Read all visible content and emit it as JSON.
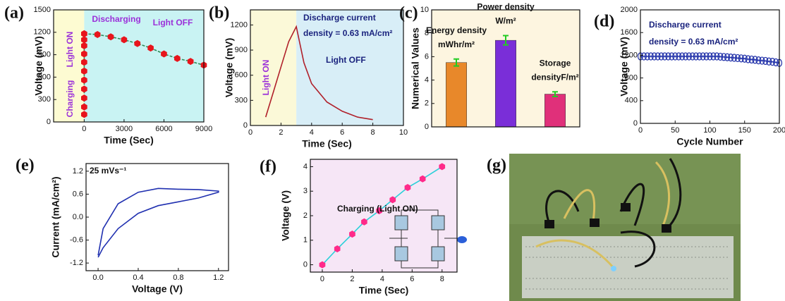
{
  "chart_data": [
    {
      "type": "scatter",
      "label": "(a)",
      "xlabel": "Time (Sec)",
      "ylabel": "Voltage (mV)",
      "xlim": [
        -2300,
        9000
      ],
      "ylim": [
        0,
        1500
      ],
      "xticks": [
        0,
        3000,
        6000,
        9000
      ],
      "yticks": [
        0,
        300,
        600,
        900,
        1200,
        1500
      ],
      "annotations": [
        "Light ON",
        "Charging",
        "Discharging",
        "Light OFF"
      ],
      "series": [
        {
          "color": "#e8141c",
          "line_color": "#2e8b57",
          "marker": "hexagon",
          "dashed": true,
          "x": [
            0,
            0,
            0,
            0,
            0,
            0,
            0,
            0,
            0,
            0,
            0
          ],
          "values": [
            100,
            200,
            320,
            440,
            560,
            680,
            800,
            910,
            1020,
            1100,
            1180
          ]
        },
        {
          "color": "#e8141c",
          "line_color": "#2e8b57",
          "marker": "hexagon",
          "dashed": true,
          "x": [
            0,
            1000,
            2000,
            3000,
            4000,
            5000,
            6000,
            7000,
            8000,
            9000
          ],
          "values": [
            1180,
            1170,
            1140,
            1100,
            1050,
            990,
            910,
            850,
            810,
            760
          ]
        }
      ]
    },
    {
      "type": "line",
      "label": "(b)",
      "xlabel": "Time (Sec)",
      "ylabel": "Voltage (mV)",
      "xlim": [
        0,
        10
      ],
      "ylim": [
        0,
        1380
      ],
      "xticks": [
        0,
        2,
        4,
        6,
        8,
        10
      ],
      "yticks": [
        0,
        300,
        600,
        900,
        1200
      ],
      "annotations": [
        "Light ON",
        "Discharge current",
        "density = 0.63 mA/cm²",
        "Light OFF"
      ],
      "series": [
        {
          "color": "#b0202a",
          "x": [
            1,
            1.5,
            2,
            2.5,
            3,
            3.5,
            4,
            5,
            6,
            7,
            8
          ],
          "values": [
            100,
            400,
            700,
            1000,
            1180,
            750,
            500,
            280,
            170,
            100,
            70
          ]
        }
      ]
    },
    {
      "type": "bar",
      "label": "(c)",
      "ylabel": "Numerical Values",
      "ylim": [
        0,
        10
      ],
      "yticks": [
        0,
        2,
        4,
        6,
        8,
        10
      ],
      "categories": [
        "Energy density",
        "Power density",
        "Storage"
      ],
      "units": [
        "mWhr/m²",
        "W/m²",
        "densityF/m²"
      ],
      "values": [
        5.5,
        7.4,
        2.8
      ],
      "errors": [
        0.3,
        0.4,
        0.2
      ],
      "colors": [
        "#e8882a",
        "#7a2ed8",
        "#e0307a"
      ],
      "error_color": "#22cc22"
    },
    {
      "type": "scatter",
      "label": "(d)",
      "xlabel": "Cycle Number",
      "ylabel": "Voltage (mV)",
      "xlim": [
        0,
        200
      ],
      "ylim": [
        0,
        2000
      ],
      "xticks": [
        0,
        50,
        100,
        150,
        200
      ],
      "yticks": [
        0,
        400,
        800,
        1200,
        1600,
        2000
      ],
      "annotations": [
        "Discharge current",
        "density = 0.63 mA/cm²"
      ],
      "series": [
        {
          "color": "#1f2fa8",
          "marker": "ring",
          "x": [
            0,
            5,
            10,
            15,
            20,
            25,
            30,
            35,
            40,
            45,
            50,
            55,
            60,
            65,
            70,
            75,
            80,
            85,
            90,
            95,
            100,
            105,
            110,
            115,
            120,
            125,
            130,
            135,
            140,
            145,
            150,
            155,
            160,
            165,
            170,
            175,
            180,
            185,
            190,
            195,
            200
          ],
          "values": [
            1180,
            1180,
            1180,
            1180,
            1180,
            1180,
            1180,
            1180,
            1180,
            1180,
            1180,
            1180,
            1180,
            1180,
            1180,
            1180,
            1180,
            1180,
            1180,
            1180,
            1180,
            1180,
            1180,
            1175,
            1170,
            1165,
            1160,
            1155,
            1150,
            1145,
            1140,
            1130,
            1125,
            1120,
            1110,
            1105,
            1100,
            1090,
            1085,
            1075,
            1065
          ]
        }
      ]
    },
    {
      "type": "line",
      "label": "(e)",
      "xlabel": "Voltage (V)",
      "ylabel": "Current (mA/cm²)",
      "xlim": [
        -0.12,
        1.3
      ],
      "ylim": [
        -1.4,
        1.4
      ],
      "xticks": [
        {
          "value": 0,
          "label": "0.0"
        },
        0.4,
        0.8,
        1.2
      ],
      "yticks": [
        -1.2,
        -0.6,
        {
          "value": 0,
          "label": "0.0"
        },
        0.6,
        1.2
      ],
      "annotations": [
        "25 mVs⁻¹"
      ],
      "series": [
        {
          "color": "#2030b0",
          "x": [
            0,
            0.05,
            0.2,
            0.4,
            0.6,
            0.8,
            1.0,
            1.2,
            1.2,
            1.0,
            0.8,
            0.6,
            0.4,
            0.2,
            0.05,
            0
          ],
          "values": [
            -1.0,
            -0.3,
            0.35,
            0.65,
            0.75,
            0.73,
            0.72,
            0.68,
            0.65,
            0.5,
            0.4,
            0.3,
            0.1,
            -0.3,
            -0.8,
            -1.05
          ]
        }
      ]
    },
    {
      "type": "line",
      "label": "(f)",
      "xlabel": "Time (Sec)",
      "ylabel": "Voltage (V)",
      "xlim": [
        -0.8,
        9
      ],
      "ylim": [
        -0.3,
        4.3
      ],
      "xticks": [
        0,
        2,
        4,
        6,
        8
      ],
      "yticks": [
        0,
        1,
        2,
        3,
        4
      ],
      "annotations": [
        "Charging (Light ON)"
      ],
      "series": [
        {
          "color": "#ff2a8a",
          "line_color": "#2ad0d8",
          "marker": "hexagon",
          "x": [
            0,
            1,
            2,
            2.8,
            3.8,
            4.7,
            5.7,
            6.7,
            8
          ],
          "values": [
            0,
            0.65,
            1.25,
            1.75,
            2.2,
            2.65,
            3.15,
            3.5,
            4.0
          ]
        }
      ]
    }
  ],
  "photo": {
    "label": "(g)"
  }
}
